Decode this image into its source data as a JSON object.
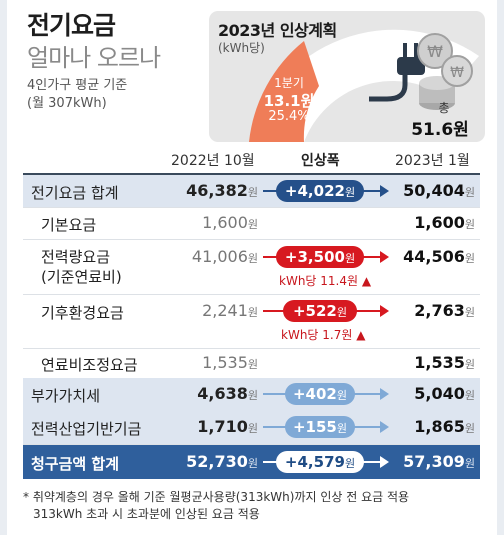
{
  "header": {
    "title": "전기요금",
    "subtitle": "얼마나 오르나",
    "basis_line1": "4인가구 평균 기준",
    "basis_line2": "(월 307kWh)"
  },
  "plan": {
    "title": "2023년 인상계획",
    "unit": "(kWh당)",
    "q1_label": "1분기",
    "q1_value": "13.1원",
    "q1_pct": "25.4%",
    "q1_fraction": 0.254,
    "total_label": "총",
    "total_value": "51.6원",
    "colors": {
      "arc_fill": "#ef7d58",
      "arc_rest": "#ffffff",
      "plug": "#2c3a4a",
      "coins": "#bfbfbf"
    }
  },
  "table": {
    "col_old": "2022년 10월",
    "col_change": "인상폭",
    "col_new": "2023년 1월",
    "unit_won": "원",
    "rows": [
      {
        "label": "전기요금 합계",
        "old": "46,382",
        "change": "+4,022",
        "new": "50,404"
      },
      {
        "label": "기본요금",
        "old": "1,600",
        "new": "1,600"
      },
      {
        "label_line1": "전력량요금",
        "label_line2": "(기준연료비)",
        "old": "41,006",
        "change": "+3,500",
        "note": "kWh당 11.4원",
        "new": "44,506"
      },
      {
        "label": "기후환경요금",
        "old": "2,241",
        "change": "+522",
        "note": "kWh당 1.7원",
        "new": "2,763"
      },
      {
        "label": "연료비조정요금",
        "old": "1,535",
        "new": "1,535"
      },
      {
        "label": "부가가치세",
        "old": "4,638",
        "change": "+402",
        "new": "5,040"
      },
      {
        "label": "전력산업기반기금",
        "old": "1,710",
        "change": "+155",
        "new": "1,865"
      },
      {
        "label": "청구금액 합계",
        "old": "52,730",
        "change": "+4,579",
        "new": "57,309"
      }
    ],
    "colors": {
      "accent_dark": "#25508a",
      "accent_red": "#d71920",
      "accent_light": "#7fa9d6",
      "total_row": "#2f5f9c",
      "shade_row": "#dde5f0"
    }
  },
  "footnote": {
    "line1": "* 취약계층의 경우 올해 기준 월평균사용량(313kWh)까지 인상 전 요금 적용",
    "line2": "313kWh 초과 시 초과분에 인상된 요금 적용"
  }
}
